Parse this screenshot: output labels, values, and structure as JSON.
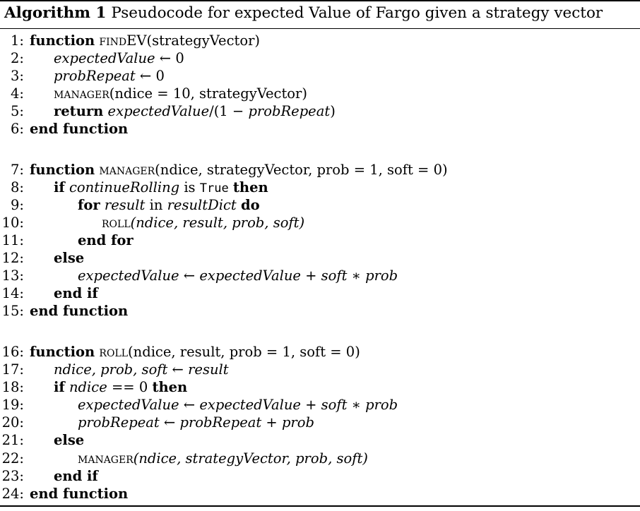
{
  "caption": {
    "label": "Algorithm 1",
    "text": "Pseudocode for expected Value of Fargo given a strategy vector"
  },
  "lines": {
    "l1": {
      "num": "1:",
      "kw_function": "function",
      "name": "findEV",
      "args": "(strategyVector)"
    },
    "l2": {
      "num": "2:",
      "var": "expectedValue",
      "rest": " ← 0"
    },
    "l3": {
      "num": "3:",
      "var": "probRepeat",
      "rest": " ← 0"
    },
    "l4": {
      "num": "4:",
      "name": "manager",
      "args": "(ndice = 10, strategyVector)"
    },
    "l5": {
      "num": "5:",
      "kw_return": "return",
      "expr_a": "expectedValue",
      "expr_b": "/(1 − ",
      "expr_c": "probRepeat",
      "expr_d": ")"
    },
    "l6": {
      "num": "6:",
      "kw": "end function"
    },
    "l7": {
      "num": "7:",
      "kw_function": "function",
      "name": "manager",
      "args": "(ndice, strategyVector, prob = 1, soft = 0)"
    },
    "l8": {
      "num": "8:",
      "kw_if": "if",
      "cond": "continueRolling",
      "is": " is ",
      "val": "True",
      "kw_then": "then"
    },
    "l9": {
      "num": "9:",
      "kw_for": "for",
      "var": "result",
      "in": " in ",
      "dict": "resultDict",
      "kw_do": "do"
    },
    "l10": {
      "num": "10:",
      "name": "roll",
      "args": "(ndice, result, prob, soft)"
    },
    "l11": {
      "num": "11:",
      "kw": "end for"
    },
    "l12": {
      "num": "12:",
      "kw": "else"
    },
    "l13": {
      "num": "13:",
      "expr": "expectedValue ← expectedValue + soft ∗ prob"
    },
    "l14": {
      "num": "14:",
      "kw": "end if"
    },
    "l15": {
      "num": "15:",
      "kw": "end function"
    },
    "l16": {
      "num": "16:",
      "kw_function": "function",
      "name": "roll",
      "args": "(ndice, result, prob = 1, soft = 0)"
    },
    "l17": {
      "num": "17:",
      "expr": "ndice, prob, soft ← result"
    },
    "l18": {
      "num": "18:",
      "kw_if": "if",
      "cond": "ndice",
      "rest": " == 0 ",
      "kw_then": "then"
    },
    "l19": {
      "num": "19:",
      "expr": "expectedValue ← expectedValue + soft ∗ prob"
    },
    "l20": {
      "num": "20:",
      "expr": "probRepeat ← probRepeat + prob"
    },
    "l21": {
      "num": "21:",
      "kw": "else"
    },
    "l22": {
      "num": "22:",
      "name": "manager",
      "args": "(ndice, strategyVector, prob, soft)"
    },
    "l23": {
      "num": "23:",
      "kw": "end if"
    },
    "l24": {
      "num": "24:",
      "kw": "end function"
    }
  }
}
